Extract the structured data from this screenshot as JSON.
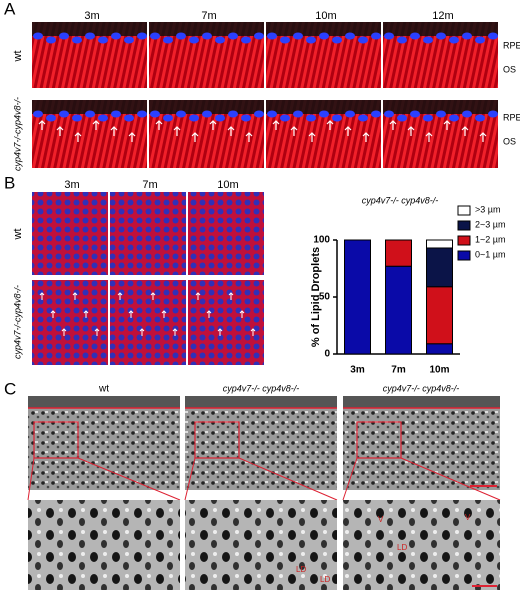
{
  "panel_a": {
    "label": "A",
    "columns": [
      "3m",
      "7m",
      "10m",
      "12m"
    ],
    "rows": [
      "wt",
      "cyp4v7-/-cyp4v8-/-"
    ],
    "layers": [
      "RPE",
      "OS"
    ]
  },
  "panel_b": {
    "label": "B",
    "columns": [
      "3m",
      "7m",
      "10m"
    ],
    "rows": [
      "wt",
      "cyp4v7-/-cyp4v8-/-"
    ]
  },
  "chart_data": {
    "type": "stacked_bar",
    "title": "cyp4v7-/- cyp4v8-/-",
    "y_label": "% of Lipid Droplets",
    "categories": [
      "3m",
      "7m",
      "10m"
    ],
    "series": [
      {
        "name": "0~1 µm",
        "color": "#0a0aa8",
        "values": [
          100,
          77,
          9
        ]
      },
      {
        "name": "1~2 µm",
        "color": "#d0101a",
        "values": [
          0,
          23,
          50
        ]
      },
      {
        "name": "2~3 µm",
        "color": "#0b1448",
        "values": [
          0,
          0,
          34
        ]
      },
      {
        "name": ">3 µm",
        "color": "#ffffff",
        "values": [
          0,
          0,
          7
        ]
      }
    ],
    "ylim": [
      0,
      100
    ],
    "yticks": [
      0,
      50,
      100
    ]
  },
  "panel_c": {
    "label": "C",
    "columns": [
      "wt",
      "cyp4v7-/- cyp4v8-/-",
      "cyp4v7-/- cyp4v8-/-"
    ],
    "annotations": [
      "LD",
      "V"
    ]
  }
}
